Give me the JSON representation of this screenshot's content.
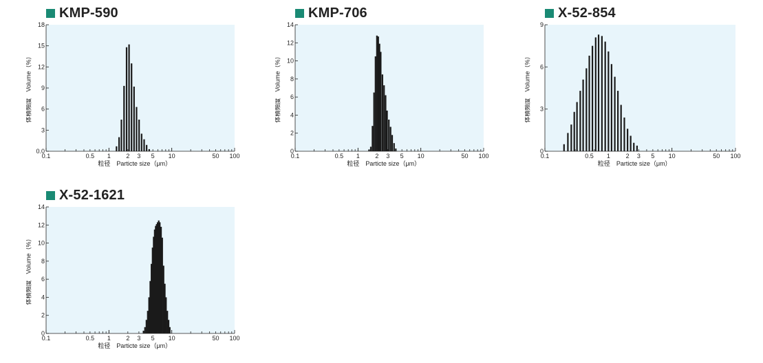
{
  "colors": {
    "accent": "#1a8a74",
    "plot_bg": "#e8f5fb",
    "bar": "#1a1a1a",
    "axis": "#222222"
  },
  "chart_data": [
    {
      "type": "bar",
      "title": "KMP-590",
      "xlabel": "粒径　Particte size（μm）",
      "ylabel": "体積頻度　Volume（%）",
      "xscale": "log",
      "xlim": [
        0.1,
        100
      ],
      "xticks": [
        "0.1",
        "0.5",
        "1",
        "2",
        "3",
        "5",
        "10",
        "50",
        "100"
      ],
      "ylim": [
        0,
        18
      ],
      "yticks": [
        "0.0",
        "3",
        "6",
        "9",
        "12",
        "15",
        "18"
      ],
      "x": [
        1.32,
        1.45,
        1.58,
        1.74,
        1.91,
        2.09,
        2.29,
        2.51,
        2.75,
        3.02,
        3.31,
        3.63,
        3.98,
        4.37
      ],
      "values": [
        0.7,
        2.0,
        4.5,
        9.3,
        14.8,
        15.2,
        12.5,
        9.2,
        6.3,
        4.5,
        2.5,
        1.7,
        0.9,
        0.3
      ]
    },
    {
      "type": "bar",
      "title": "KMP-706",
      "xlabel": "粒径　Particte size（μm）",
      "ylabel": "体積頻度　Volume（%）",
      "xscale": "log",
      "xlim": [
        0.1,
        100
      ],
      "xticks": [
        "0.1",
        "0.5",
        "1",
        "2",
        "3",
        "5",
        "10",
        "50",
        "100"
      ],
      "ylim": [
        0,
        14
      ],
      "yticks": [
        "0",
        "2",
        "4",
        "6",
        "8",
        "10",
        "12",
        "14"
      ],
      "x": [
        1.5,
        1.6,
        1.7,
        1.8,
        1.9,
        2.0,
        2.1,
        2.2,
        2.3,
        2.45,
        2.6,
        2.75,
        2.9,
        3.1,
        3.3,
        3.5,
        3.75,
        4.0
      ],
      "values": [
        0.2,
        0.5,
        2.8,
        6.5,
        10.5,
        12.8,
        12.7,
        11.9,
        11.0,
        8.5,
        7.3,
        6.2,
        4.5,
        3.5,
        2.7,
        1.8,
        0.9,
        0.3
      ]
    },
    {
      "type": "bar",
      "title": "X-52-854",
      "xlabel": "粒径　Particte size（μm）",
      "ylabel": "体積頻度　Volume（%）",
      "xscale": "log",
      "xlim": [
        0.1,
        100
      ],
      "xticks": [
        "0.1",
        "0.5",
        "1",
        "2",
        "3",
        "5",
        "10",
        "50",
        "100"
      ],
      "ylim": [
        0,
        9
      ],
      "yticks": [
        "0",
        "3",
        "6",
        "9"
      ],
      "x": [
        0.2,
        0.23,
        0.26,
        0.29,
        0.32,
        0.36,
        0.4,
        0.45,
        0.5,
        0.56,
        0.63,
        0.7,
        0.79,
        0.89,
        1.0,
        1.12,
        1.26,
        1.41,
        1.58,
        1.78,
        2.0,
        2.24,
        2.51,
        2.82
      ],
      "values": [
        0.5,
        1.3,
        1.9,
        2.8,
        3.5,
        4.3,
        5.1,
        5.9,
        6.8,
        7.5,
        8.1,
        8.3,
        8.2,
        7.8,
        7.1,
        6.2,
        5.3,
        4.3,
        3.3,
        2.4,
        1.6,
        1.1,
        0.6,
        0.4
      ]
    },
    {
      "type": "bar",
      "title": "X-52-1621",
      "xlabel": "粒径　Particte size（μm）",
      "ylabel": "体積頻度　Volume（%）",
      "xscale": "log",
      "xlim": [
        0.1,
        100
      ],
      "xticks": [
        "0.1",
        "0.5",
        "1",
        "2",
        "3",
        "5",
        "10",
        "50",
        "100"
      ],
      "ylim": [
        0,
        14
      ],
      "yticks": [
        "0",
        "2",
        "4",
        "6",
        "8",
        "10",
        "12",
        "14"
      ],
      "x": [
        3.55,
        3.75,
        3.95,
        4.15,
        4.35,
        4.55,
        4.75,
        4.95,
        5.15,
        5.35,
        5.55,
        5.75,
        5.95,
        6.2,
        6.45,
        6.75,
        7.05,
        7.4,
        7.75,
        8.1,
        8.5,
        8.9,
        9.3
      ],
      "values": [
        0.3,
        0.7,
        1.5,
        2.5,
        4.0,
        5.8,
        7.7,
        9.5,
        10.7,
        11.5,
        11.9,
        12.1,
        12.3,
        12.5,
        12.3,
        11.8,
        10.6,
        7.5,
        5.5,
        4.0,
        2.5,
        1.5,
        0.7
      ]
    }
  ]
}
